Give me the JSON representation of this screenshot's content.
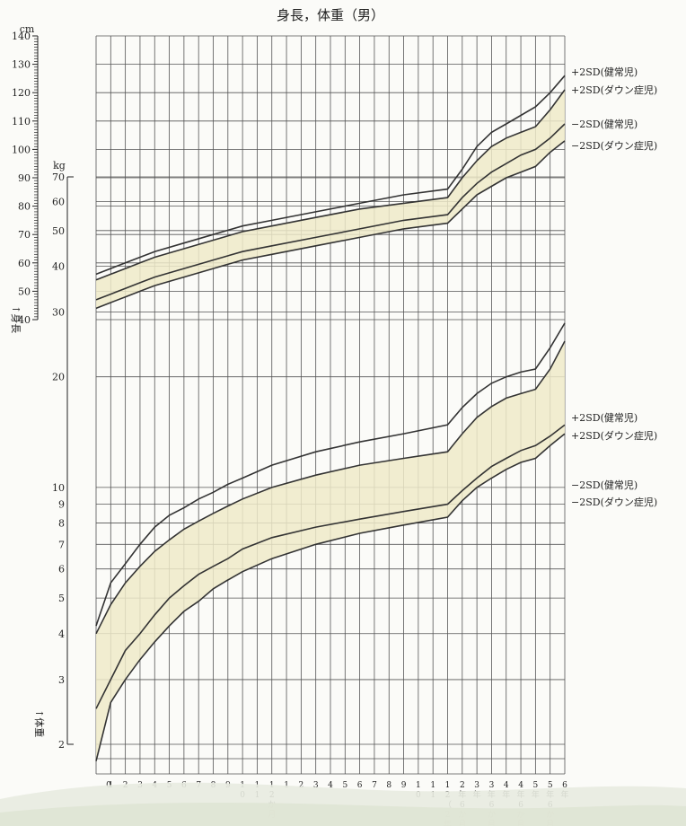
{
  "chart_data": {
    "type": "line",
    "title": "身長，体重（男）",
    "height_axis": {
      "unit": "cm",
      "label": "↑身長",
      "range": [
        40,
        140
      ],
      "ticks": [
        "140",
        "130",
        "120",
        "110",
        "100",
        "90",
        "80",
        "70",
        "60",
        "50",
        "40"
      ]
    },
    "weight_axis": {
      "unit": "kg",
      "label": "↑体重",
      "scale": "log",
      "range": [
        2,
        70
      ],
      "ticks": [
        "70",
        "60",
        "50",
        "40",
        "30",
        "20",
        "10",
        "9",
        "8",
        "7",
        "6",
        "5",
        "4",
        "3",
        "2"
      ]
    },
    "x_labels": [
      "0",
      "1",
      "2",
      "3",
      "4",
      "5",
      "6",
      "7",
      "8",
      "9",
      "10",
      "11",
      "12か月",
      "1",
      "2",
      "3",
      "4",
      "5",
      "6",
      "7",
      "8",
      "9",
      "10",
      "11",
      "12（2年）",
      "2年6か月",
      "3年",
      "3年6か月",
      "4年",
      "4年6か月",
      "5年",
      "5年6か月",
      "6年"
    ],
    "x_months": [
      0,
      1,
      2,
      3,
      4,
      5,
      6,
      7,
      8,
      9,
      10,
      11,
      12,
      13,
      14,
      15,
      16,
      17,
      18,
      19,
      20,
      21,
      22,
      23,
      24,
      30,
      36,
      42,
      48,
      54,
      60,
      66,
      72
    ],
    "height_series": [
      {
        "name": "+2SD(健常児)",
        "x": [
          0,
          1,
          2,
          3,
          4,
          6,
          8,
          10,
          12,
          15,
          18,
          21,
          24,
          30,
          36,
          42,
          48,
          54,
          60,
          66,
          72
        ],
        "values": [
          56,
          58,
          60,
          62,
          64,
          67,
          70,
          73,
          75,
          78,
          81,
          84,
          86,
          93,
          101,
          106,
          109,
          112,
          115,
          120,
          126
        ]
      },
      {
        "name": "+2SD(ダウン症児)",
        "x": [
          0,
          1,
          2,
          3,
          4,
          6,
          8,
          10,
          12,
          15,
          18,
          21,
          24,
          30,
          36,
          42,
          48,
          54,
          60,
          66,
          72
        ],
        "values": [
          54,
          56,
          58,
          60,
          62,
          65,
          68,
          71,
          73,
          76,
          79,
          81,
          83,
          90,
          96,
          101,
          104,
          106,
          108,
          114,
          121
        ]
      },
      {
        "name": "−2SD(健常児)",
        "x": [
          0,
          1,
          2,
          3,
          4,
          6,
          8,
          10,
          12,
          15,
          18,
          21,
          24,
          30,
          36,
          42,
          48,
          54,
          60,
          66,
          72
        ],
        "values": [
          47,
          49,
          51,
          53,
          55,
          58,
          61,
          64,
          66,
          69,
          72,
          75,
          77,
          83,
          88,
          92,
          95,
          98,
          100,
          104,
          109
        ]
      },
      {
        "name": "−2SD(ダウン症児)",
        "x": [
          0,
          1,
          2,
          3,
          4,
          6,
          8,
          10,
          12,
          15,
          18,
          21,
          24,
          30,
          36,
          42,
          48,
          54,
          60,
          66,
          72
        ],
        "values": [
          44,
          46,
          48,
          50,
          52,
          55,
          58,
          61,
          63,
          66,
          69,
          72,
          74,
          79,
          84,
          87,
          90,
          92,
          94,
          99,
          103
        ]
      }
    ],
    "weight_series": [
      {
        "name": "+2SD(健常児)",
        "x": [
          0,
          1,
          2,
          3,
          4,
          5,
          6,
          7,
          8,
          9,
          10,
          12,
          15,
          18,
          21,
          24,
          30,
          36,
          42,
          48,
          54,
          60,
          66,
          72
        ],
        "values": [
          4.2,
          5.5,
          6.2,
          7.0,
          7.8,
          8.4,
          8.8,
          9.3,
          9.7,
          10.2,
          10.6,
          11.5,
          12.5,
          13.3,
          14.0,
          14.8,
          16.5,
          18.0,
          19.2,
          20.0,
          20.6,
          21.0,
          24.0,
          28.0
        ]
      },
      {
        "name": "+2SD(ダウン症児)",
        "x": [
          0,
          1,
          2,
          3,
          4,
          5,
          6,
          7,
          8,
          9,
          10,
          12,
          15,
          18,
          21,
          24,
          30,
          36,
          42,
          48,
          54,
          60,
          66,
          72
        ],
        "values": [
          4.0,
          4.8,
          5.5,
          6.1,
          6.7,
          7.2,
          7.7,
          8.1,
          8.5,
          8.9,
          9.3,
          10.0,
          10.8,
          11.5,
          12.0,
          12.5,
          14.0,
          15.5,
          16.6,
          17.5,
          18.0,
          18.5,
          21.0,
          25.0
        ]
      },
      {
        "name": "−2SD(健常児)",
        "x": [
          0,
          1,
          2,
          3,
          4,
          5,
          6,
          7,
          8,
          9,
          10,
          12,
          15,
          18,
          21,
          24,
          30,
          36,
          42,
          48,
          54,
          60,
          66,
          72
        ],
        "values": [
          2.5,
          3.0,
          3.6,
          4.0,
          4.5,
          5.0,
          5.4,
          5.8,
          6.1,
          6.4,
          6.8,
          7.3,
          7.8,
          8.2,
          8.6,
          9.0,
          9.8,
          10.6,
          11.4,
          12.0,
          12.6,
          13.0,
          13.8,
          14.8
        ]
      },
      {
        "name": "−2SD(ダウン症児)",
        "x": [
          0,
          1,
          2,
          3,
          4,
          5,
          6,
          7,
          8,
          9,
          10,
          12,
          15,
          18,
          21,
          24,
          30,
          36,
          42,
          48,
          54,
          60,
          66,
          72
        ],
        "values": [
          1.8,
          2.6,
          3.0,
          3.4,
          3.8,
          4.2,
          4.6,
          4.9,
          5.3,
          5.6,
          5.9,
          6.4,
          7.0,
          7.5,
          7.9,
          8.3,
          9.2,
          10.0,
          10.6,
          11.2,
          11.7,
          12.0,
          13.0,
          14.0
        ]
      }
    ],
    "colors": {
      "band": "#eeeac9",
      "line": "#333333",
      "grid": "#555555"
    },
    "grid": true
  }
}
